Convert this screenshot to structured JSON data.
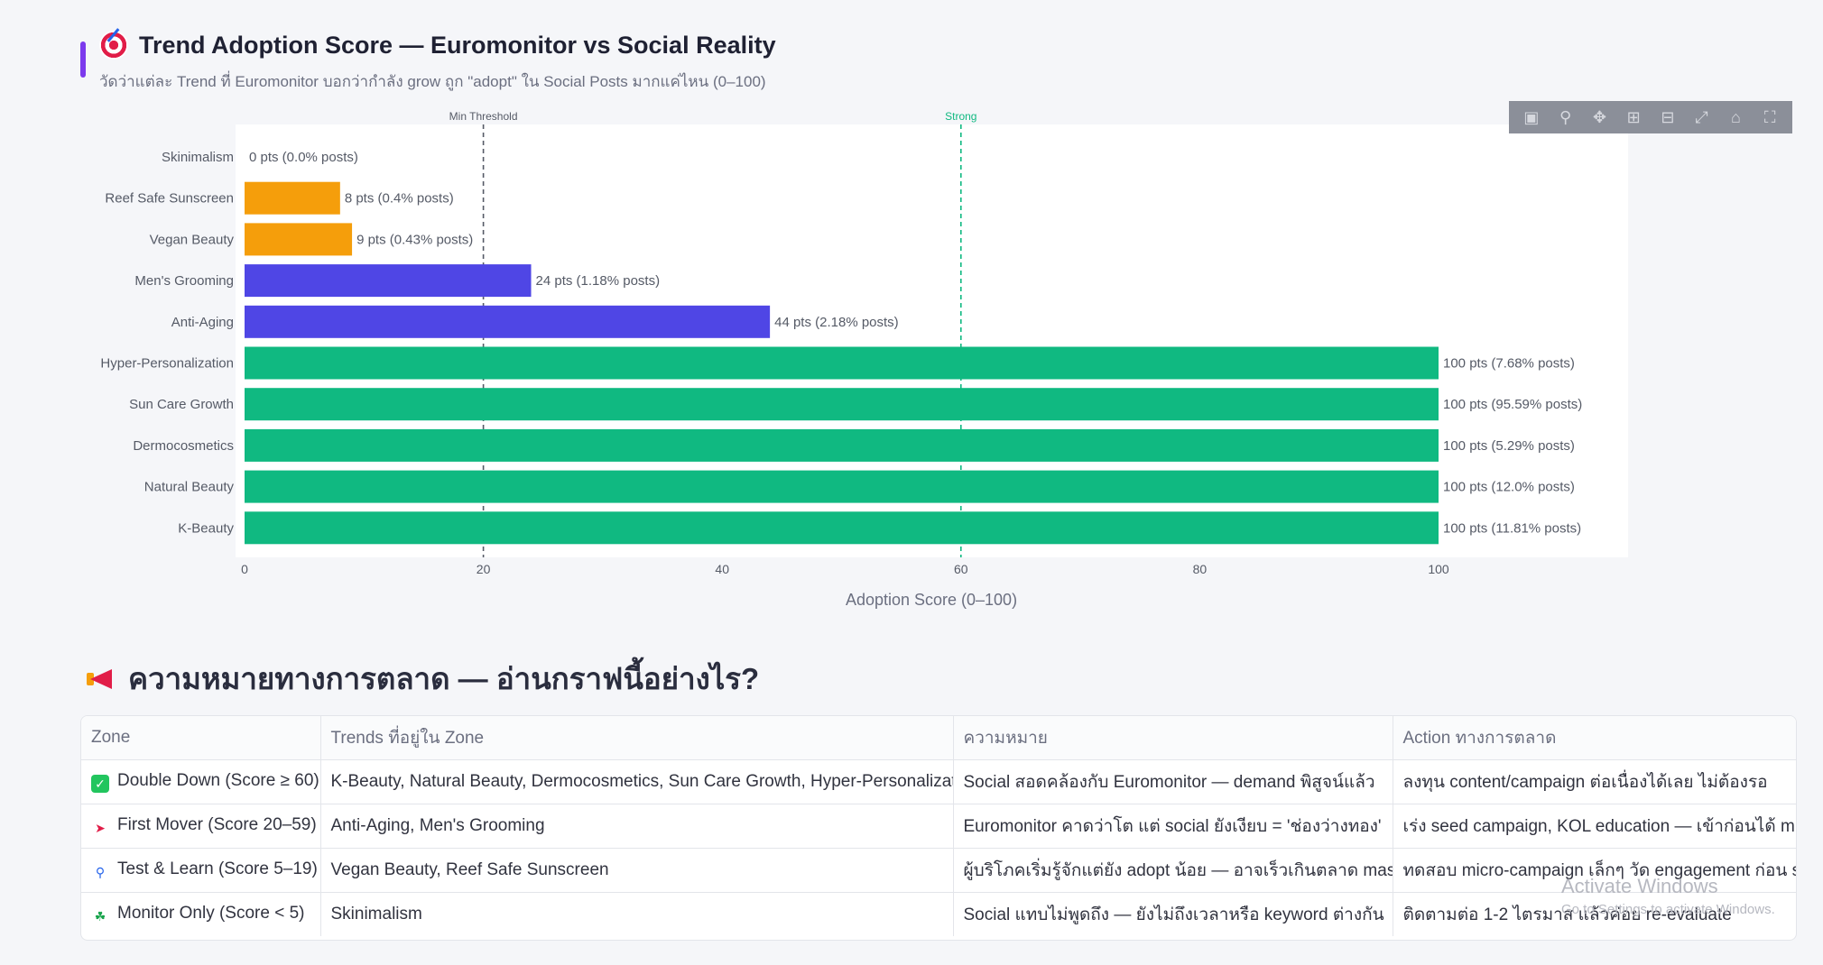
{
  "header": {
    "title": "Trend Adoption Score — Euromonitor vs Social Reality",
    "subtitle": "วัดว่าแต่ละ Trend ที่ Euromonitor บอกว่ากำลัง grow ถูก \"adopt\" ใน Social Posts มากแค่ไหน (0–100)"
  },
  "chart_data": {
    "type": "bar",
    "orientation": "horizontal",
    "categories": [
      "Skinimalism",
      "Reef Safe Sunscreen",
      "Vegan Beauty",
      "Men's Grooming",
      "Anti-Aging",
      "Hyper-Personalization",
      "Sun Care Growth",
      "Dermocosmetics",
      "Natural Beauty",
      "K-Beauty"
    ],
    "values": [
      0,
      8,
      9,
      24,
      44,
      100,
      100,
      100,
      100,
      100
    ],
    "data_labels": [
      "0 pts  (0.0% posts)",
      "8 pts  (0.4% posts)",
      "9 pts  (0.43% posts)",
      "24 pts  (1.18% posts)",
      "44 pts  (2.18% posts)",
      "100 pts  (7.68% posts)",
      "100 pts  (95.59% posts)",
      "100 pts  (5.29% posts)",
      "100 pts  (12.0% posts)",
      "100 pts  (11.81% posts)"
    ],
    "bar_colors": [
      "#f59e0b",
      "#f59e0b",
      "#f59e0b",
      "#4f46e5",
      "#4f46e5",
      "#10b981",
      "#10b981",
      "#10b981",
      "#10b981",
      "#10b981"
    ],
    "xlabel": "Adoption Score (0–100)",
    "x_ticks": [
      "0",
      "20",
      "40",
      "60",
      "80",
      "100"
    ],
    "xlim": [
      0,
      115
    ],
    "reference_lines": [
      {
        "value": 20,
        "label": "Min Threshold",
        "color": "#555a66"
      },
      {
        "value": 60,
        "label": "Strong",
        "color": "#10b981"
      }
    ],
    "grid": false
  },
  "modebar": {
    "icons": [
      "camera-icon",
      "zoom-icon",
      "pan-icon",
      "zoom-in-icon",
      "zoom-out-icon",
      "autoscale-icon",
      "reset-axes-icon",
      "fullscreen-icon"
    ]
  },
  "section": {
    "title": "ความหมายทางการตลาด — อ่านกราฟนี้อย่างไร?"
  },
  "table": {
    "headers": [
      "Zone",
      "Trends ที่อยู่ใน Zone",
      "ความหมาย",
      "Action ทางการตลาด"
    ],
    "rows": [
      {
        "zone": "Double Down (Score ≥ 60)",
        "icon": "check-mark-icon",
        "icon_color": "#22c55e",
        "trends": "K-Beauty, Natural Beauty, Dermocosmetics, Sun Care Growth, Hyper-Personalization",
        "meaning": "Social สอดคล้องกับ Euromonitor — demand พิสูจน์แล้ว",
        "action": "ลงทุน content/campaign ต่อเนื่องได้เลย ไม่ต้องรอ"
      },
      {
        "zone": "First Mover (Score 20–59)",
        "icon": "rocket-icon",
        "icon_color": "#e11d48",
        "trends": "Anti-Aging, Men's Grooming",
        "meaning": "Euromonitor คาดว่าโต แต่ social ยังเงียบ = 'ช่องว่างทอง'",
        "action": "เร่ง seed campaign, KOL education — เข้าก่อนได้ mind"
      },
      {
        "zone": "Test & Learn (Score 5–19)",
        "icon": "magnifier-icon",
        "icon_color": "#2563eb",
        "trends": "Vegan Beauty, Reef Safe Sunscreen",
        "meaning": "ผู้บริโภคเริ่มรู้จักแต่ยัง adopt น้อย — อาจเร็วเกินตลาด mass",
        "action": "ทดสอบ micro-campaign เล็กๆ วัด engagement ก่อน sc"
      },
      {
        "zone": "Monitor Only (Score < 5)",
        "icon": "seedling-icon",
        "icon_color": "#16a34a",
        "trends": "Skinimalism",
        "meaning": "Social แทบไม่พูดถึง — ยังไม่ถึงเวลาหรือ keyword ต่างกัน",
        "action": "ติดตามต่อ 1-2 ไตรมาส แล้วค่อย re-evaluate"
      }
    ]
  },
  "watermark": {
    "line1": "Activate Windows",
    "line2": "Go to Settings to activate Windows."
  }
}
